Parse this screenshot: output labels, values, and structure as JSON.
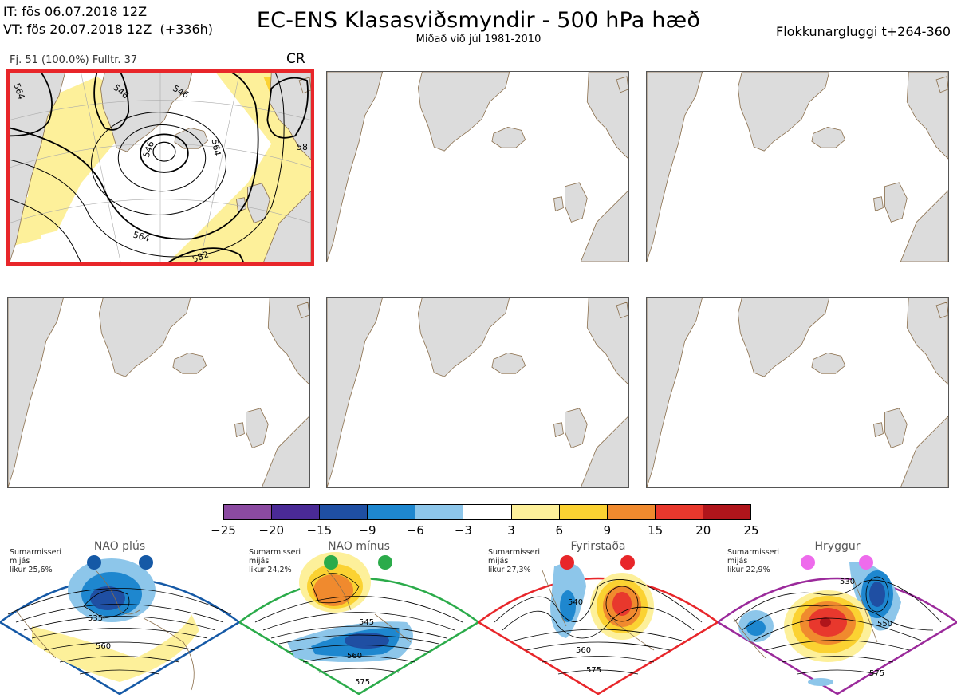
{
  "header": {
    "init_line": "IT: fös 06.07.2018 12Z",
    "valid_line": "VT: fös 20.07.2018 12Z  (+336h)",
    "title": "EC-ENS Klasasviðsmyndir - 500 hPa hæð",
    "subtitle": "Miðað við júl 1981-2010",
    "window": "Flokkunargluggi t+264-360"
  },
  "selected_panel": {
    "info": "Fj. 51 (100.0%)   Fulltr. 37",
    "regime_code": "CR",
    "contour_labels": [
      "546",
      "564",
      "546",
      "546",
      "564",
      "564",
      "582",
      "58"
    ],
    "highlight_color": "#e8262a"
  },
  "colorbar": {
    "ticks": [
      "−25",
      "−20",
      "−15",
      "−9",
      "−6",
      "−3",
      "3",
      "6",
      "9",
      "15",
      "20",
      "25"
    ],
    "colors": [
      "#8b4aa1",
      "#4a2a96",
      "#1f4fa3",
      "#1e87cf",
      "#8dc6ea",
      "#ffffff",
      "#fdf09a",
      "#fbd232",
      "#f08a2e",
      "#e8382d",
      "#b0151b"
    ]
  },
  "regimes": [
    {
      "name": "NAO plús",
      "season": "Sumarmisseri",
      "scope": "mijás",
      "prob": "líkur 25,6%",
      "color": "#1559a6",
      "labels": [
        "535",
        "560"
      ]
    },
    {
      "name": "NAO mínus",
      "season": "Sumarmisseri",
      "scope": "mijás",
      "prob": "líkur 24,2%",
      "color": "#2bab4a",
      "labels": [
        "545",
        "560",
        "575"
      ]
    },
    {
      "name": "Fyrirstaða",
      "season": "Sumarmisseri",
      "scope": "mijás",
      "prob": "líkur 27,3%",
      "color": "#e8262a",
      "labels": [
        "540",
        "560",
        "575"
      ]
    },
    {
      "name": "Hryggur",
      "season": "Sumarmisseri",
      "scope": "mijás",
      "prob": "líkur 22,9%",
      "color": "#9b2a9b",
      "labels": [
        "530",
        "550",
        "575"
      ]
    }
  ]
}
